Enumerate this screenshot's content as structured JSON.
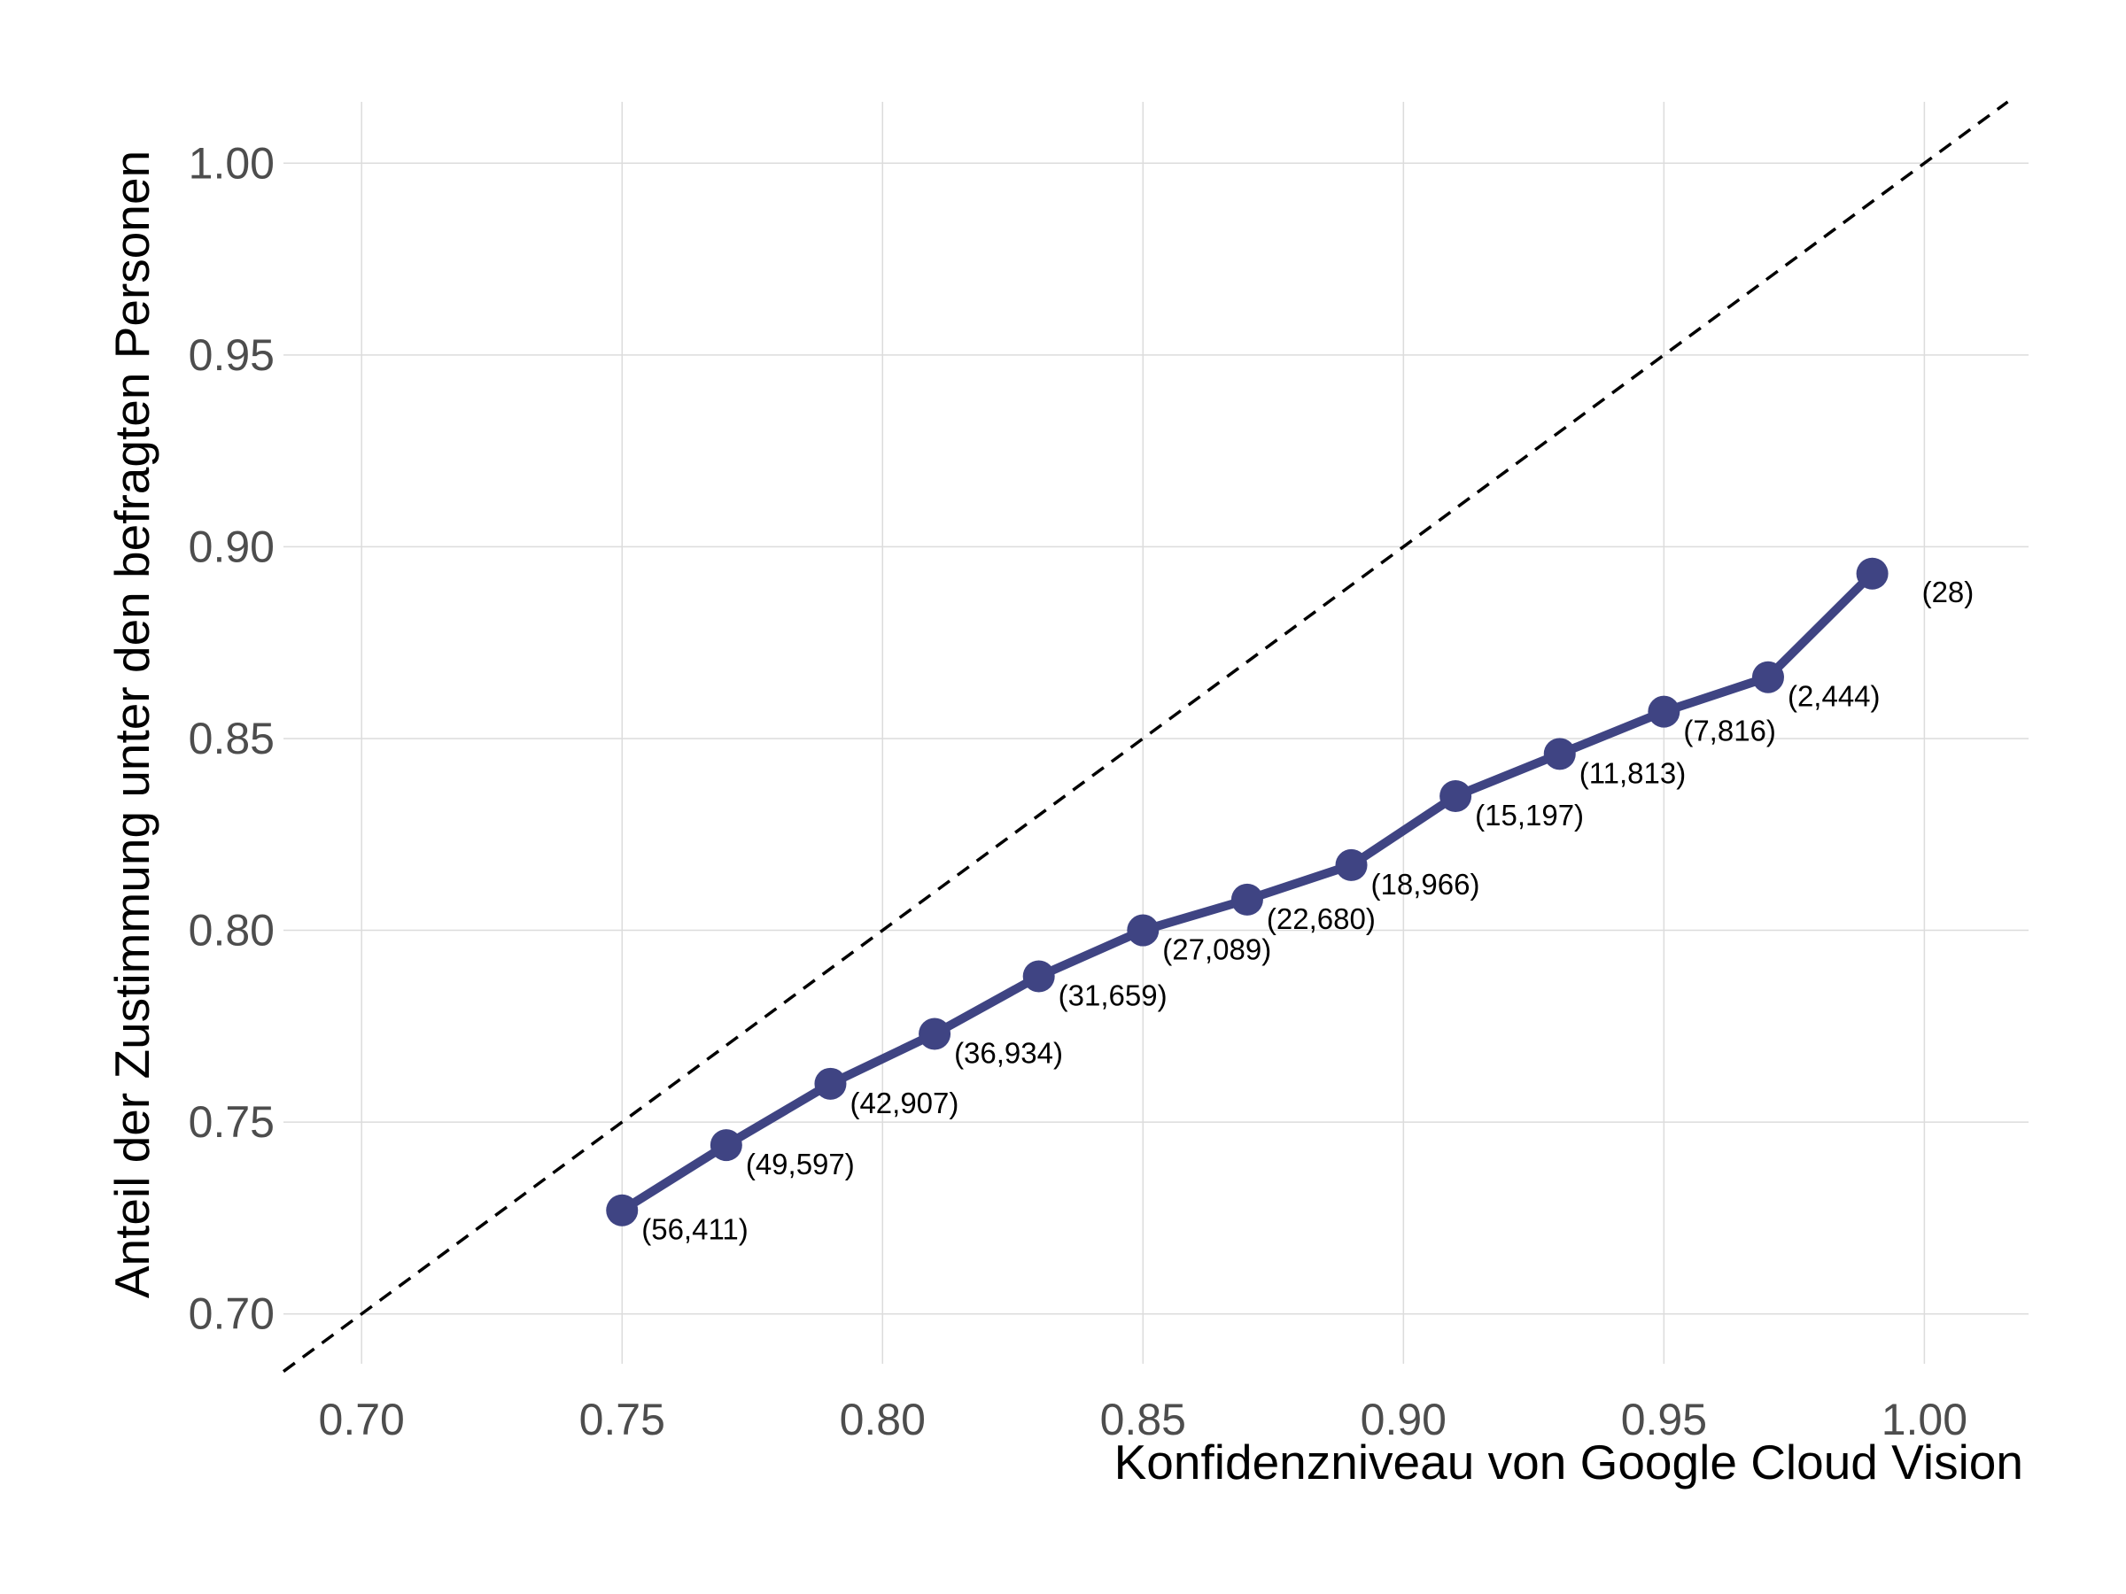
{
  "chart_data": {
    "type": "line",
    "title": "",
    "xlabel": "Konfidenzniveau von Google Cloud Vision",
    "ylabel": "Anteil der Zustimmung unter den befragten Personen",
    "xlim": [
      0.685,
      1.02
    ],
    "ylim": [
      0.687,
      1.016
    ],
    "xticks": [
      "0.70",
      "0.75",
      "0.80",
      "0.85",
      "0.90",
      "0.95",
      "1.00"
    ],
    "yticks": [
      "0.70",
      "0.75",
      "0.80",
      "0.85",
      "0.90",
      "0.95",
      "1.00"
    ],
    "grid": true,
    "legend": "none",
    "reference_line": {
      "style": "dashed",
      "color": "#000000",
      "slope": 1,
      "intercept": 0
    },
    "series": [
      {
        "color": "#3f4483",
        "x": [
          0.75,
          0.77,
          0.79,
          0.81,
          0.83,
          0.85,
          0.87,
          0.89,
          0.91,
          0.93,
          0.95,
          0.97,
          0.99
        ],
        "y": [
          0.727,
          0.744,
          0.76,
          0.773,
          0.788,
          0.8,
          0.808,
          0.817,
          0.835,
          0.846,
          0.857,
          0.866,
          0.893
        ],
        "labels": [
          "(56,411)",
          "(49,597)",
          "(42,907)",
          "(36,934)",
          "(31,659)",
          "(27,089)",
          "(22,680)",
          "(18,966)",
          "(15,197)",
          "(11,813)",
          "(7,816)",
          "(2,444)",
          "(28)"
        ]
      }
    ]
  }
}
